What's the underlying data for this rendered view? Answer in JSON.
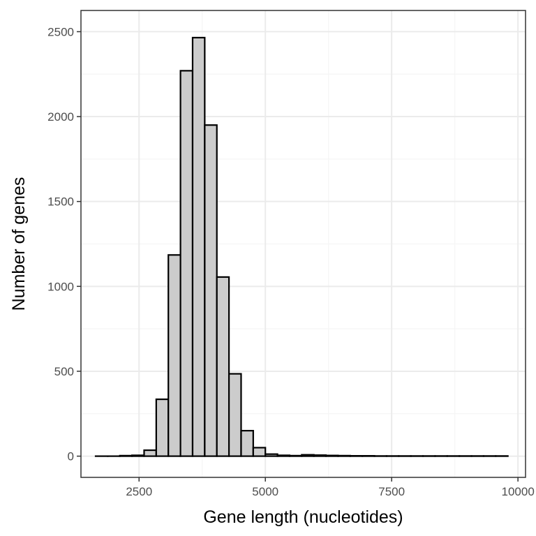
{
  "chart_data": {
    "type": "bar",
    "title": "",
    "xlabel": "Gene length (nucleotides)",
    "ylabel": "Number of genes",
    "xlim": [
      1350,
      10150
    ],
    "ylim": [
      -125,
      2625
    ],
    "x_ticks": [
      2500,
      5000,
      7500,
      10000
    ],
    "x_tick_labels": [
      "2500",
      "5000",
      "7500",
      "10000"
    ],
    "y_ticks": [
      0,
      500,
      1000,
      1500,
      2000,
      2500
    ],
    "y_tick_labels": [
      "0",
      "500",
      "1000",
      "1500",
      "2000",
      "2500"
    ],
    "grid": true,
    "bin_width": 240,
    "bin_start": 1640,
    "values": [
      0,
      0,
      3,
      5,
      35,
      335,
      1185,
      2270,
      2465,
      1950,
      1055,
      485,
      150,
      50,
      12,
      5,
      3,
      8,
      6,
      4,
      3,
      2,
      2,
      1,
      1,
      1,
      1,
      1,
      1,
      1,
      1,
      1,
      1,
      1
    ],
    "bar_fill": "#cccccc",
    "bar_stroke": "#000000",
    "panel_border": "#333333",
    "grid_major": "#ebebeb",
    "grid_minor": "#f5f5f5"
  }
}
